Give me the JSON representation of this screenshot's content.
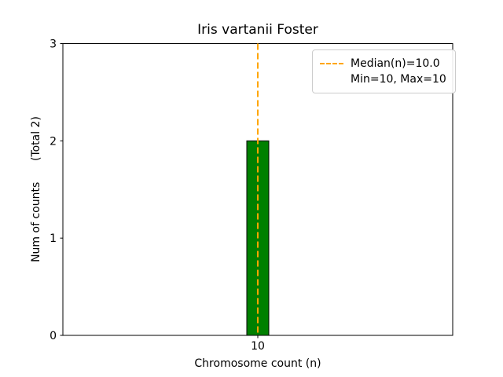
{
  "chart_data": {
    "type": "bar",
    "title": "Iris vartanii Foster",
    "xlabel": "Chromosome count (n)",
    "ylabel": "Num of counts      (Total 2)",
    "categories": [
      10
    ],
    "values": [
      2
    ],
    "total": 2,
    "ylim": [
      0,
      3
    ],
    "yticks": [
      "0",
      "1",
      "2",
      "3"
    ],
    "xtick_labels": [
      "10"
    ],
    "bar_color": "#008000",
    "bar_edge_color": "#000000",
    "median_line": {
      "value": 10.0,
      "color": "#ffa500",
      "style": "dashed"
    },
    "legend": {
      "position": "upper right",
      "entries": [
        "Median(n)=10.0",
        "Min=10, Max=10"
      ]
    },
    "grid": false,
    "background": "#ffffff"
  }
}
